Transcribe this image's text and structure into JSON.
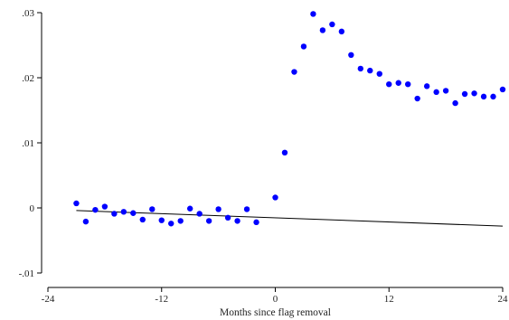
{
  "chart_data": {
    "type": "scatter",
    "title": "",
    "xlabel": "Months since flag removal",
    "ylabel": "",
    "xlim": [
      -24,
      24
    ],
    "ylim": [
      -0.01,
      0.03
    ],
    "x_ticks": [
      {
        "value": -24,
        "label": "-24"
      },
      {
        "value": -12,
        "label": "-12"
      },
      {
        "value": 0,
        "label": "0"
      },
      {
        "value": 12,
        "label": "12"
      },
      {
        "value": 24,
        "label": "24"
      }
    ],
    "y_ticks": [
      {
        "value": -0.01,
        "label": "-.01"
      },
      {
        "value": 0,
        "label": "0"
      },
      {
        "value": 0.01,
        "label": ".01"
      },
      {
        "value": 0.02,
        "label": ".02"
      },
      {
        "value": 0.03,
        "label": ".03"
      }
    ],
    "grid": false,
    "point_color": "#0000ff",
    "line_color": "#000000",
    "points": [
      {
        "x": -21,
        "y": 0.0007
      },
      {
        "x": -20,
        "y": -0.0021
      },
      {
        "x": -19,
        "y": -0.0003
      },
      {
        "x": -18,
        "y": 0.0002
      },
      {
        "x": -17,
        "y": -0.0009
      },
      {
        "x": -16,
        "y": -0.0006
      },
      {
        "x": -15,
        "y": -0.0008
      },
      {
        "x": -14,
        "y": -0.0018
      },
      {
        "x": -13,
        "y": -0.0002
      },
      {
        "x": -12,
        "y": -0.0019
      },
      {
        "x": -11,
        "y": -0.0024
      },
      {
        "x": -10,
        "y": -0.002
      },
      {
        "x": -9,
        "y": -0.0001
      },
      {
        "x": -8,
        "y": -0.0009
      },
      {
        "x": -7,
        "y": -0.002
      },
      {
        "x": -6,
        "y": -0.0002
      },
      {
        "x": -5,
        "y": -0.0015
      },
      {
        "x": -4,
        "y": -0.002
      },
      {
        "x": -3,
        "y": -0.0002
      },
      {
        "x": -2,
        "y": -0.0022
      },
      {
        "x": 0,
        "y": 0.0016
      },
      {
        "x": 1,
        "y": 0.0085
      },
      {
        "x": 2,
        "y": 0.0209
      },
      {
        "x": 3,
        "y": 0.0248
      },
      {
        "x": 4,
        "y": 0.0298
      },
      {
        "x": 5,
        "y": 0.0273
      },
      {
        "x": 6,
        "y": 0.0282
      },
      {
        "x": 7,
        "y": 0.0271
      },
      {
        "x": 8,
        "y": 0.0235
      },
      {
        "x": 9,
        "y": 0.0214
      },
      {
        "x": 10,
        "y": 0.0211
      },
      {
        "x": 11,
        "y": 0.0206
      },
      {
        "x": 12,
        "y": 0.019
      },
      {
        "x": 13,
        "y": 0.0192
      },
      {
        "x": 14,
        "y": 0.019
      },
      {
        "x": 15,
        "y": 0.0168
      },
      {
        "x": 16,
        "y": 0.0187
      },
      {
        "x": 17,
        "y": 0.0178
      },
      {
        "x": 18,
        "y": 0.018
      },
      {
        "x": 19,
        "y": 0.0161
      },
      {
        "x": 20,
        "y": 0.0175
      },
      {
        "x": 21,
        "y": 0.0176
      },
      {
        "x": 22,
        "y": 0.0171
      },
      {
        "x": 23,
        "y": 0.0171
      },
      {
        "x": 24,
        "y": 0.0182
      }
    ],
    "trend_line": {
      "x": [
        -21,
        24
      ],
      "y": [
        -0.0004,
        -0.0028
      ]
    }
  }
}
